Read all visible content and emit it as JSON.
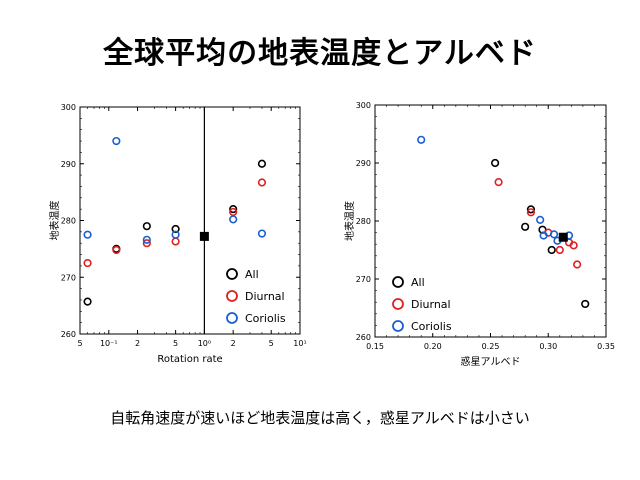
{
  "slide": {
    "title": "全球平均の地表温度とアルベド",
    "caption": "自転角速度が速いほど地表温度は高く，惑星アルベドは小さい"
  },
  "colors": {
    "all": "#000000",
    "diurnal": "#e02020",
    "coriolis": "#1a5fd0"
  },
  "chart_data": [
    {
      "type": "scatter",
      "xscale": "log",
      "xlabel": "Rotation rate",
      "ylabel": "地表温度",
      "ylim": [
        260,
        300
      ],
      "xlim": [
        0.05,
        10
      ],
      "yticks": [
        260,
        270,
        280,
        290,
        300
      ],
      "xtick_labels": [
        {
          "x": 0.05,
          "label": "5"
        },
        {
          "x": 0.1,
          "label": "10⁻¹"
        },
        {
          "x": 0.2,
          "label": "2"
        },
        {
          "x": 0.5,
          "label": "5"
        },
        {
          "x": 1,
          "label": "10⁰"
        },
        {
          "x": 2,
          "label": "2"
        },
        {
          "x": 5,
          "label": "5"
        },
        {
          "x": 10,
          "label": "10¹"
        }
      ],
      "reference_line_x": 1,
      "series": [
        {
          "name": "All",
          "key": "all",
          "points": [
            [
              0.06,
              265.7
            ],
            [
              0.12,
              275
            ],
            [
              0.25,
              279
            ],
            [
              0.5,
              278.5
            ],
            [
              2,
              282
            ],
            [
              4,
              290
            ]
          ]
        },
        {
          "name": "Diurnal",
          "key": "diurnal",
          "points": [
            [
              0.06,
              272.5
            ],
            [
              0.12,
              274.8
            ],
            [
              0.25,
              276
            ],
            [
              0.5,
              276.3
            ],
            [
              2,
              281.5
            ],
            [
              4,
              286.7
            ]
          ]
        },
        {
          "name": "Coriolis",
          "key": "coriolis",
          "points": [
            [
              0.06,
              277.5
            ],
            [
              0.12,
              294
            ],
            [
              0.25,
              276.6
            ],
            [
              0.5,
              277.5
            ],
            [
              2,
              280.2
            ],
            [
              4,
              277.7
            ]
          ]
        },
        {
          "name": "Reference",
          "key": "ref",
          "marker": "filled-square",
          "points": [
            [
              1,
              277.2
            ]
          ]
        }
      ],
      "legend": [
        "All",
        "Diurnal",
        "Coriolis"
      ]
    },
    {
      "type": "scatter",
      "xscale": "linear",
      "xlabel": "惑星アルベド",
      "ylabel": "地表温度",
      "xlim": [
        0.15,
        0.35
      ],
      "ylim": [
        260,
        300
      ],
      "yticks": [
        260,
        270,
        280,
        290,
        300
      ],
      "xticks": [
        0.15,
        0.2,
        0.25,
        0.3,
        0.35
      ],
      "xtick_labels": [
        "0.15",
        "0.20",
        "0.25",
        "0.30",
        "0.35"
      ],
      "series": [
        {
          "name": "All",
          "key": "all",
          "points": [
            [
              0.254,
              290
            ],
            [
              0.285,
              282
            ],
            [
              0.28,
              279
            ],
            [
              0.295,
              278.5
            ],
            [
              0.303,
              275
            ],
            [
              0.332,
              265.7
            ]
          ]
        },
        {
          "name": "Diurnal",
          "key": "diurnal",
          "points": [
            [
              0.257,
              286.7
            ],
            [
              0.285,
              281.5
            ],
            [
              0.3,
              278
            ],
            [
              0.31,
              275
            ],
            [
              0.318,
              276.3
            ],
            [
              0.322,
              275.8
            ],
            [
              0.325,
              272.5
            ]
          ]
        },
        {
          "name": "Coriolis",
          "key": "coriolis",
          "points": [
            [
              0.19,
              294
            ],
            [
              0.293,
              280.2
            ],
            [
              0.296,
              277.5
            ],
            [
              0.305,
              277.7
            ],
            [
              0.308,
              276.6
            ],
            [
              0.318,
              277.5
            ]
          ]
        },
        {
          "name": "Reference",
          "key": "ref",
          "marker": "filled-square",
          "points": [
            [
              0.313,
              277.2
            ]
          ]
        }
      ],
      "legend": [
        "All",
        "Diurnal",
        "Coriolis"
      ]
    }
  ]
}
